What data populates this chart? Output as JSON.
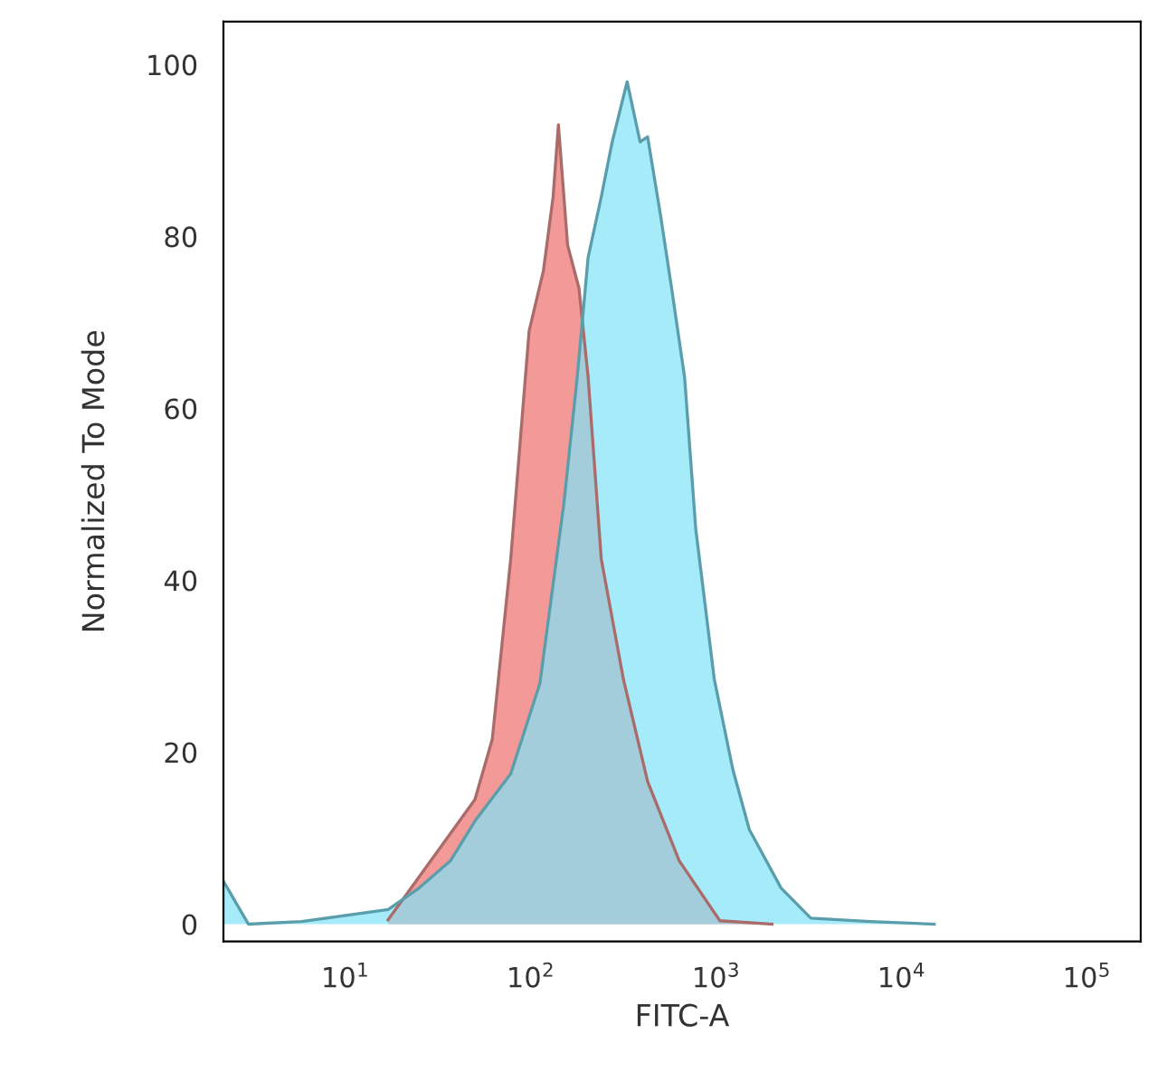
{
  "chart_data": {
    "type": "area",
    "xlabel": "FITC-A",
    "ylabel": "Normalized To Mode",
    "log": "x",
    "grid": false,
    "legend": false,
    "xlim": [
      2.2,
      195000
    ],
    "ylim": [
      -2,
      105
    ],
    "xticks": [
      {
        "value": 10,
        "label": "10$^{1}$"
      },
      {
        "value": 100,
        "label": "10$^{2}$"
      },
      {
        "value": 1000,
        "label": "10$^{3}$"
      },
      {
        "value": 10000,
        "label": "10$^{4}$"
      },
      {
        "value": 100000,
        "label": "10$^{5}$"
      }
    ],
    "yticks": [
      0,
      20,
      40,
      60,
      80,
      100
    ],
    "series": [
      {
        "color": "#f39a98",
        "x": [
          17,
          50,
          62,
          78,
          98,
          117,
          132,
          141,
          158,
          182,
          204,
          240,
          316,
          427,
          631,
          1047,
          2000
        ],
        "values": [
          0.5,
          14.5,
          21.5,
          42.5,
          69,
          76,
          84.6,
          93,
          79,
          74,
          63.6,
          42.5,
          28.5,
          16.6,
          7.4,
          0.4,
          0
        ]
      },
      {
        "color": "#80e2f6",
        "x": [
          2.2,
          3,
          5.8,
          17,
          25,
          37,
          50,
          78,
          112,
          151,
          178,
          204,
          240,
          275,
          331,
          389,
          427,
          501,
          575,
          676,
          776,
          977,
          1230,
          1510,
          2240,
          3240,
          6760,
          15000
        ],
        "values": [
          5,
          0,
          0.3,
          1.7,
          4.2,
          7.4,
          12,
          17.5,
          28,
          49,
          63.6,
          77.6,
          84.6,
          91,
          98,
          91,
          91.6,
          82.5,
          74,
          63.6,
          46,
          28.5,
          18,
          11,
          4.2,
          0.7,
          0.3,
          0
        ]
      }
    ]
  }
}
